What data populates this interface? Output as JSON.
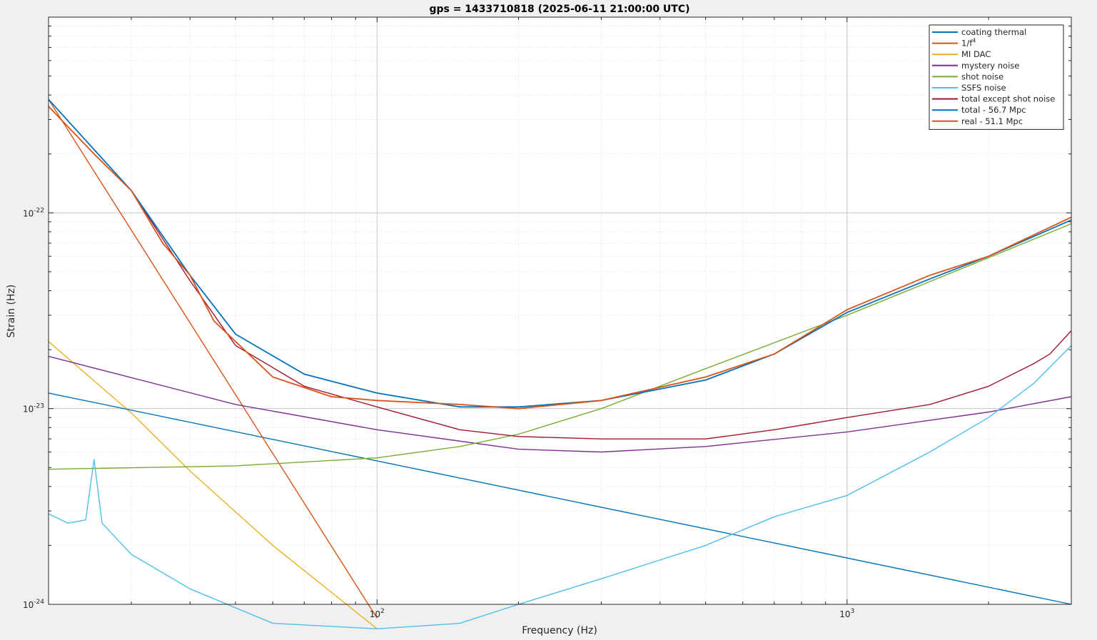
{
  "chart_data": {
    "type": "line",
    "title": "gps = 1433710818 (2025-06-11 21:00:00 UTC)",
    "xlabel": "Frequency (Hz)",
    "ylabel": "Strain (Hz)",
    "xscale": "log",
    "yscale": "log",
    "xlim": [
      20,
      3000
    ],
    "ylim": [
      1e-24,
      1e-21
    ],
    "grid": true,
    "legend_position": "top-right",
    "x_ticks": [
      {
        "value": 100,
        "base": "10",
        "exp": "2"
      },
      {
        "value": 1000,
        "base": "10",
        "exp": "3"
      }
    ],
    "y_ticks": [
      {
        "value": 1e-22,
        "base": "10",
        "exp": "-22"
      },
      {
        "value": 1e-23,
        "base": "10",
        "exp": "-23"
      },
      {
        "value": 1e-24,
        "base": "10",
        "exp": "-24"
      }
    ],
    "series": [
      {
        "name": "coating thermal",
        "color": "#0072bd",
        "x": [
          20,
          3000
        ],
        "y": [
          1.2e-23,
          1e-24
        ]
      },
      {
        "name": "1/f^4",
        "name_base": "1/f",
        "name_sup": "4",
        "color": "#d95319",
        "x": [
          20,
          100
        ],
        "y": [
          3.8e-22,
          8.5e-25
        ]
      },
      {
        "name": "MI DAC",
        "color": "#edb120",
        "x": [
          20,
          30,
          40,
          60,
          100
        ],
        "y": [
          2.2e-23,
          9.5e-24,
          4.8e-24,
          2e-24,
          7.5e-25
        ]
      },
      {
        "name": "mystery noise",
        "color": "#7e2f8e",
        "x": [
          20,
          50,
          100,
          200,
          300,
          500,
          1000,
          2000,
          3000
        ],
        "y": [
          1.85e-23,
          1.05e-23,
          7.8e-24,
          6.2e-24,
          6e-24,
          6.4e-24,
          7.6e-24,
          9.6e-24,
          1.15e-23
        ]
      },
      {
        "name": "shot noise",
        "color": "#77ac30",
        "x": [
          20,
          50,
          100,
          150,
          200,
          300,
          500,
          1000,
          2000,
          3000
        ],
        "y": [
          4.9e-24,
          5.1e-24,
          5.6e-24,
          6.4e-24,
          7.4e-24,
          1e-23,
          1.6e-23,
          3e-23,
          5.9e-23,
          8.8e-23
        ]
      },
      {
        "name": "SSFS noise",
        "color": "#4dbeee",
        "x": [
          20,
          22,
          24,
          25,
          26,
          30,
          40,
          60,
          100,
          150,
          200,
          300,
          500,
          700,
          1000,
          1500,
          2000,
          2500,
          3000
        ],
        "y": [
          2.9e-24,
          2.6e-24,
          2.7e-24,
          5.5e-24,
          2.6e-24,
          1.8e-24,
          1.2e-24,
          8e-25,
          7.5e-25,
          8e-25,
          1e-24,
          1.35e-24,
          2e-24,
          2.8e-24,
          3.6e-24,
          6e-24,
          9e-24,
          1.35e-23,
          2.1e-23
        ]
      },
      {
        "name": "total except shot noise",
        "color": "#a2142f",
        "x": [
          20,
          30,
          40,
          50,
          70,
          100,
          150,
          200,
          300,
          500,
          700,
          1000,
          1500,
          2000,
          2500,
          2700,
          3000
        ],
        "y": [
          3.8e-22,
          1.3e-22,
          4.5e-23,
          2.1e-23,
          1.3e-23,
          1.02e-23,
          7.8e-24,
          7.2e-24,
          7e-24,
          7e-24,
          7.8e-24,
          9e-24,
          1.05e-23,
          1.3e-23,
          1.7e-23,
          1.9e-23,
          2.5e-23
        ]
      },
      {
        "name": "total - 56.7 Mpc",
        "color": "#0072bd",
        "x": [
          20,
          30,
          40,
          50,
          70,
          100,
          150,
          200,
          300,
          500,
          700,
          1000,
          1500,
          2000,
          3000
        ],
        "y": [
          3.8e-22,
          1.3e-22,
          4.8e-23,
          2.4e-23,
          1.5e-23,
          1.2e-23,
          1.02e-23,
          1.02e-23,
          1.1e-23,
          1.4e-23,
          1.9e-23,
          3.1e-23,
          4.6e-23,
          6e-23,
          9.2e-23
        ]
      },
      {
        "name": "real - 51.1 Mpc",
        "color": "#d95319",
        "x": [
          20,
          25,
          30,
          35,
          40,
          45,
          50,
          60,
          80,
          100,
          150,
          200,
          300,
          500,
          700,
          1000,
          1500,
          2000,
          3000
        ],
        "y": [
          3.5e-22,
          2e-22,
          1.3e-22,
          7e-23,
          4.8e-23,
          2.8e-23,
          2.2e-23,
          1.45e-23,
          1.15e-23,
          1.1e-23,
          1.05e-23,
          1e-23,
          1.1e-23,
          1.45e-23,
          1.9e-23,
          3.2e-23,
          4.8e-23,
          6e-23,
          9.5e-23
        ]
      }
    ]
  }
}
